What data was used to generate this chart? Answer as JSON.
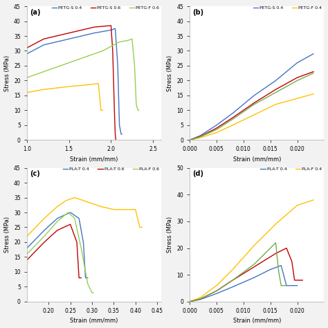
{
  "panel_a": {
    "label": "(a)",
    "xlabel": "Strain (mm/mm)",
    "ylabel": "Stress (MPa)",
    "xlim": [
      1.0,
      2.6
    ],
    "ylim": [
      0,
      45
    ],
    "xticks": [
      1.0,
      1.5,
      2.0,
      2.5
    ],
    "yticks": [
      0,
      5,
      10,
      15,
      20,
      25,
      30,
      35,
      40,
      45
    ],
    "legend_labels": [
      "PETG-S 0.4",
      "PETG-S 0.6",
      "PETG-F 0.6"
    ],
    "legend_colors": [
      "#4472C4",
      "#C00000",
      "#92D050"
    ],
    "curves": {
      "PETG-S 0.4": {
        "color": "#4472C4",
        "x": [
          1.0,
          1.2,
          1.5,
          1.8,
          2.0,
          2.05,
          2.08,
          2.1,
          2.12,
          2.13
        ],
        "y": [
          29,
          32,
          34,
          36,
          37,
          37.5,
          25,
          5,
          2,
          2
        ]
      },
      "PETG-F 0.4": {
        "color": "#FFC000",
        "x": [
          1.0,
          1.2,
          1.5,
          1.7,
          1.85,
          1.88,
          1.9
        ],
        "y": [
          16,
          17,
          18,
          18.5,
          19,
          10,
          10
        ]
      },
      "PETG-S 0.6": {
        "color": "#C00000",
        "x": [
          1.0,
          1.2,
          1.5,
          1.8,
          2.0,
          2.02,
          2.04,
          2.05,
          2.06,
          2.07
        ],
        "y": [
          31,
          34,
          36,
          38,
          38.5,
          30,
          10,
          2,
          -1,
          -1
        ]
      },
      "PETG-F 0.6": {
        "color": "#92D050",
        "x": [
          1.0,
          1.3,
          1.6,
          1.9,
          2.1,
          2.2,
          2.25,
          2.28,
          2.3,
          2.32,
          2.33
        ],
        "y": [
          21,
          24,
          27,
          30,
          33,
          33.5,
          34,
          25,
          12,
          10,
          10
        ]
      }
    }
  },
  "panel_b": {
    "label": "(b)",
    "xlabel": "Strain (mm/mm)",
    "ylabel": "Stress (MPa)",
    "xlim": [
      0.0,
      0.025
    ],
    "ylim": [
      0,
      45
    ],
    "xticks": [
      0.0,
      0.005,
      0.01,
      0.015,
      0.02
    ],
    "yticks": [
      0,
      5,
      10,
      15,
      20,
      25,
      30,
      35,
      40,
      45
    ],
    "legend_labels": [
      "PETG-S 0.4",
      "PETG-F 0.4"
    ],
    "legend_colors": [
      "#4472C4",
      "#FFC000"
    ],
    "curves": {
      "PETG-S 0.4": {
        "color": "#4472C4",
        "x": [
          0.0,
          0.002,
          0.005,
          0.008,
          0.012,
          0.016,
          0.02,
          0.023
        ],
        "y": [
          0,
          1.5,
          5,
          9,
          15,
          20,
          26,
          29
        ]
      },
      "PETG-F 0.4": {
        "color": "#FFC000",
        "x": [
          0.0,
          0.002,
          0.005,
          0.008,
          0.012,
          0.016,
          0.02,
          0.023
        ],
        "y": [
          0,
          0.8,
          2.5,
          5,
          8.5,
          12,
          14,
          15.5
        ]
      },
      "PETG-S 0.6": {
        "color": "#C00000",
        "x": [
          0.0,
          0.002,
          0.005,
          0.008,
          0.012,
          0.016,
          0.02,
          0.023
        ],
        "y": [
          0,
          1.2,
          4,
          7.5,
          12.5,
          17,
          21,
          23
        ]
      },
      "PETG-F 0.6": {
        "color": "#70AD47",
        "x": [
          0.0,
          0.002,
          0.005,
          0.008,
          0.012,
          0.016,
          0.02,
          0.023
        ],
        "y": [
          0,
          1.1,
          3.5,
          7,
          12,
          16,
          20,
          22.5
        ]
      }
    }
  },
  "panel_c": {
    "label": "(c)",
    "xlabel": "Strain (mm/mm)",
    "ylabel": "Stress (MPa)",
    "xlim": [
      0.15,
      0.46
    ],
    "ylim": [
      0,
      45
    ],
    "xticks": [
      0.2,
      0.25,
      0.3,
      0.35,
      0.4,
      0.45
    ],
    "yticks": [
      0,
      5,
      10,
      15,
      20,
      25,
      30,
      35,
      40,
      45
    ],
    "legend_labels": [
      "PLA-T 0.4",
      "PLA-T 0.6",
      "PLA-F 0.6"
    ],
    "legend_colors": [
      "#4472C4",
      "#C00000",
      "#92D050"
    ],
    "curves": {
      "PLA-T 0.4": {
        "color": "#4472C4",
        "x": [
          0.15,
          0.19,
          0.22,
          0.25,
          0.27,
          0.28,
          0.285,
          0.29
        ],
        "y": [
          18,
          24,
          28,
          30,
          28,
          20,
          8,
          8
        ]
      },
      "PLA-F 0.4": {
        "color": "#FFC000",
        "x": [
          0.15,
          0.19,
          0.22,
          0.24,
          0.26,
          0.28,
          0.3,
          0.32,
          0.35,
          0.38,
          0.4,
          0.41,
          0.415
        ],
        "y": [
          22,
          28,
          32,
          34,
          35,
          34,
          33,
          32,
          31,
          31,
          31,
          25,
          25
        ]
      },
      "PLA-T 0.6": {
        "color": "#C00000",
        "x": [
          0.15,
          0.19,
          0.22,
          0.25,
          0.265,
          0.27,
          0.275
        ],
        "y": [
          14,
          20,
          24,
          26,
          20,
          8,
          8
        ]
      },
      "PLA-F 0.6": {
        "color": "#92D050",
        "x": [
          0.15,
          0.19,
          0.22,
          0.245,
          0.26,
          0.275,
          0.29,
          0.3,
          0.303
        ],
        "y": [
          16,
          22,
          27,
          30,
          28,
          18,
          6,
          3,
          3
        ]
      }
    }
  },
  "panel_d": {
    "label": "(d)",
    "xlabel": "Strain (mm/mm)",
    "ylabel": "Stress (MPa)",
    "xlim": [
      0.0,
      0.025
    ],
    "ylim": [
      0,
      50
    ],
    "xticks": [
      0.0,
      0.005,
      0.01,
      0.015,
      0.02
    ],
    "yticks": [
      0,
      10,
      20,
      30,
      40,
      50
    ],
    "legend_labels": [
      "PLA-T 0.4",
      "PLA-F 0.4"
    ],
    "legend_colors": [
      "#4472C4",
      "#FFC000"
    ],
    "curves": {
      "PLA-T 0.4": {
        "color": "#4472C4",
        "x": [
          0.0,
          0.002,
          0.005,
          0.008,
          0.012,
          0.015,
          0.017,
          0.018,
          0.019,
          0.02
        ],
        "y": [
          0,
          0.8,
          3,
          5.5,
          9,
          12,
          13.5,
          6,
          6,
          6
        ]
      },
      "PLA-F 0.4": {
        "color": "#FFC000",
        "x": [
          0.0,
          0.002,
          0.005,
          0.008,
          0.012,
          0.016,
          0.02,
          0.023
        ],
        "y": [
          0,
          1.5,
          6,
          12,
          21,
          29,
          36,
          38
        ]
      },
      "PLA-T 0.6": {
        "color": "#C00000",
        "x": [
          0.0,
          0.002,
          0.005,
          0.008,
          0.012,
          0.016,
          0.018,
          0.019,
          0.0195,
          0.02,
          0.021
        ],
        "y": [
          0,
          1.0,
          4,
          8,
          13,
          18,
          20,
          15,
          8,
          8,
          8
        ]
      },
      "PLA-F 0.6": {
        "color": "#70AD47",
        "x": [
          0.0,
          0.002,
          0.005,
          0.008,
          0.012,
          0.015,
          0.016,
          0.0165,
          0.017,
          0.018
        ],
        "y": [
          0,
          1.0,
          4,
          8,
          14,
          20,
          22,
          12,
          6,
          6
        ]
      }
    }
  },
  "bg_color": "#f2f2f2",
  "plot_bg": "#ffffff"
}
